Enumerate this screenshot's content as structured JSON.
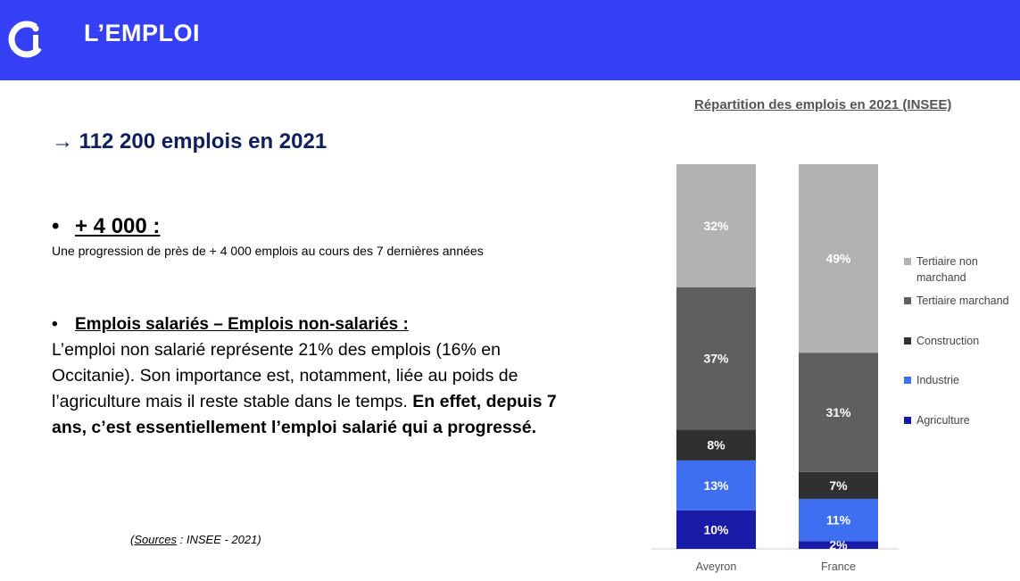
{
  "header": {
    "title": "L’EMPLOI",
    "logo_icon": "cci-logo-icon",
    "color": "#3540f5"
  },
  "headline": {
    "arrow": "→",
    "text": "112 200 emplois en 2021"
  },
  "bullet1": {
    "marker": "•",
    "label": "+ 4 000 :",
    "sub": "Une progression de près de + 4 000 emplois au cours des 7 dernières années"
  },
  "bullet2": {
    "marker": "•",
    "label": "Emplois salariés – Emplois non-salariés :",
    "text": "L’emploi non salarié représente 21% des emplois (16% en Occitanie). Son importance est, notamment, liée au poids de l’agriculture mais il reste stable dans le temps. ",
    "bold": "En effet, depuis 7 ans, c’est essentiellement l’emploi salarié qui a progressé."
  },
  "sources": {
    "open": "(",
    "label": "Sources",
    "rest": " : INSEE - 2021)"
  },
  "chart_data": {
    "type": "bar",
    "stacked": true,
    "title": "Répartition des emplois en 2021 (INSEE)",
    "categories": [
      "Aveyron",
      "France"
    ],
    "series": [
      {
        "name": "Agriculture",
        "values": [
          10,
          2
        ],
        "labels": [
          "10%",
          "2%"
        ],
        "color": "#1a1aa8"
      },
      {
        "name": "Industrie",
        "values": [
          13,
          11
        ],
        "labels": [
          "13%",
          "11%"
        ],
        "color": "#3d6ff0"
      },
      {
        "name": "Construction",
        "values": [
          8,
          7
        ],
        "labels": [
          "8%",
          "7%"
        ],
        "color": "#303030"
      },
      {
        "name": "Tertiaire marchand",
        "values": [
          37,
          31
        ],
        "labels": [
          "37%",
          "31%"
        ],
        "color": "#5f5f5f"
      },
      {
        "name": "Tertiaire non marchand",
        "values": [
          32,
          49
        ],
        "labels": [
          "32%",
          "49%"
        ],
        "color": "#b2b2b2"
      }
    ],
    "ylim": [
      0,
      100
    ],
    "legend": "right",
    "grid": false
  }
}
